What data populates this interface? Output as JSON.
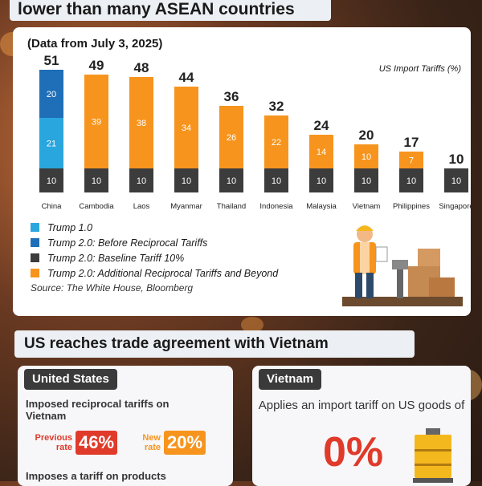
{
  "header": {
    "title": "lower than many ASEAN countries"
  },
  "card": {
    "date_note": "(Data from July 3, 2025)",
    "legend_title": "US Import Tariffs (%)",
    "legend": [
      {
        "label": "Trump 1.0",
        "color": "#29a6de"
      },
      {
        "label": "Trump 2.0: Before Reciprocal Tariffs",
        "color": "#1f6fb8"
      },
      {
        "label": "Trump 2.0: Baseline Tariff 10%",
        "color": "#3c3c3c"
      },
      {
        "label": "Trump 2.0: Additional Reciprocal Tariffs and Beyond",
        "color": "#f7941d"
      }
    ],
    "source": "Source: The White House, Bloomberg"
  },
  "chart_data": {
    "type": "bar",
    "stacked": true,
    "title": "",
    "ylabel": "US Import Tariffs (%)",
    "categories": [
      "China",
      "Cambodia",
      "Laos",
      "Myanmar",
      "Thailand",
      "Indonesia",
      "Malaysia",
      "Vietnam",
      "Philippines",
      "Singapore"
    ],
    "totals": [
      51,
      49,
      48,
      44,
      36,
      32,
      24,
      20,
      17,
      10
    ],
    "series": [
      {
        "name": "Trump 1.0",
        "color": "#29a6de",
        "values": [
          21,
          0,
          0,
          0,
          0,
          0,
          0,
          0,
          0,
          0
        ]
      },
      {
        "name": "Trump 2.0: Before Reciprocal Tariffs",
        "color": "#1f6fb8",
        "values": [
          20,
          0,
          0,
          0,
          0,
          0,
          0,
          0,
          0,
          0
        ]
      },
      {
        "name": "Trump 2.0: Baseline Tariff 10%",
        "color": "#3c3c3c",
        "values": [
          10,
          10,
          10,
          10,
          10,
          10,
          10,
          10,
          10,
          10
        ]
      },
      {
        "name": "Trump 2.0: Additional Reciprocal Tariffs and Beyond",
        "color": "#f7941d",
        "values": [
          0,
          39,
          38,
          34,
          26,
          22,
          14,
          10,
          7,
          0
        ]
      }
    ],
    "ylim": [
      0,
      55
    ],
    "grid": false,
    "legend_position": "bottom-left"
  },
  "section2": {
    "title": "US reaches trade agreement with Vietnam"
  },
  "united_states": {
    "heading": "United States",
    "imposed_text": "Imposed reciprocal tariffs on Vietnam",
    "previous_label": "Previous rate",
    "previous_value": "46%",
    "new_label": "New rate",
    "new_value": "20%",
    "imposes_text": "Imposes a tariff on products"
  },
  "vietnam": {
    "heading": "Vietnam",
    "applies_text": "Applies an import tariff on US goods of",
    "value": "0%"
  }
}
